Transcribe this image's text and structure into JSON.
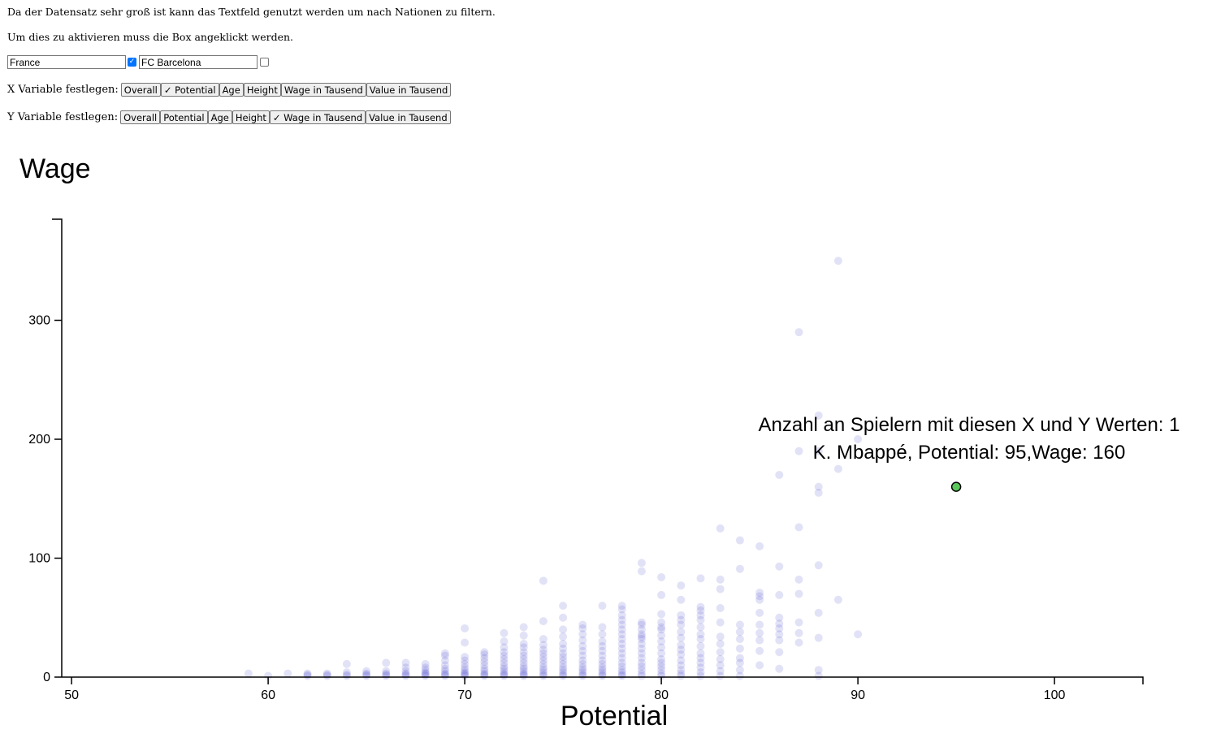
{
  "intro": {
    "line1": "Da der Datensatz sehr groß ist kann das Textfeld genutzt werden um nach Nationen zu filtern.",
    "line2": "Um dies zu aktivieren muss die Box angeklickt werden."
  },
  "filters": {
    "nation_value": "France",
    "nation_checked": true,
    "club_value": "FC Barcelona",
    "club_checked": false
  },
  "x_selector": {
    "label": "X Variable festlegen:",
    "options": [
      "Overall",
      "✓ Potential",
      "Age",
      "Height",
      "Wage in Tausend",
      "Value in Tausend"
    ]
  },
  "y_selector": {
    "label": "Y Variable festlegen:",
    "options": [
      "Overall",
      "Potential",
      "Age",
      "Height",
      "✓ Wage in Tausend",
      "Value in Tausend"
    ]
  },
  "colors": {
    "points": "#3a3acc",
    "highlight_fill": "#5ac85a",
    "axis": "#000000"
  },
  "chart_data": {
    "type": "scatter",
    "title": "Wage",
    "xlabel": "Potential",
    "ylabel": "Wage",
    "xlim": [
      49.5,
      104.5
    ],
    "ylim": [
      0,
      385
    ],
    "xticks": [
      50,
      60,
      70,
      80,
      90,
      100
    ],
    "yticks": [
      0,
      100,
      200,
      300
    ],
    "grid": false,
    "tooltip": {
      "line1": "Anzahl an Spielern mit diesen X und Y Werten: 1",
      "line2": "K. Mbappé, Potential: 95,Wage: 160"
    },
    "highlight": {
      "x": 95,
      "y": 160
    },
    "points": [
      [
        59,
        3
      ],
      [
        60,
        1
      ],
      [
        61,
        3
      ],
      [
        62,
        1
      ],
      [
        62,
        2
      ],
      [
        62,
        3
      ],
      [
        63,
        1
      ],
      [
        63,
        2
      ],
      [
        63,
        3
      ],
      [
        64,
        1
      ],
      [
        64,
        2
      ],
      [
        64,
        4
      ],
      [
        64,
        11
      ],
      [
        65,
        1
      ],
      [
        65,
        2
      ],
      [
        65,
        3
      ],
      [
        65,
        5
      ],
      [
        66,
        1
      ],
      [
        66,
        2
      ],
      [
        66,
        3
      ],
      [
        66,
        5
      ],
      [
        66,
        12
      ],
      [
        67,
        1
      ],
      [
        67,
        2
      ],
      [
        67,
        3
      ],
      [
        67,
        5
      ],
      [
        67,
        8
      ],
      [
        67,
        12
      ],
      [
        68,
        1
      ],
      [
        68,
        2
      ],
      [
        68,
        3
      ],
      [
        68,
        4
      ],
      [
        68,
        6
      ],
      [
        68,
        8
      ],
      [
        68,
        11
      ],
      [
        69,
        1
      ],
      [
        69,
        2
      ],
      [
        69,
        3
      ],
      [
        69,
        5
      ],
      [
        69,
        7
      ],
      [
        69,
        10
      ],
      [
        69,
        14
      ],
      [
        69,
        18
      ],
      [
        69,
        20
      ],
      [
        70,
        1
      ],
      [
        70,
        2
      ],
      [
        70,
        3
      ],
      [
        70,
        4
      ],
      [
        70,
        6
      ],
      [
        70,
        8
      ],
      [
        70,
        11
      ],
      [
        70,
        14
      ],
      [
        70,
        17
      ],
      [
        70,
        29
      ],
      [
        70,
        41
      ],
      [
        71,
        1
      ],
      [
        71,
        2
      ],
      [
        71,
        3
      ],
      [
        71,
        5
      ],
      [
        71,
        7
      ],
      [
        71,
        10
      ],
      [
        71,
        13
      ],
      [
        71,
        16
      ],
      [
        71,
        19
      ],
      [
        71,
        21
      ],
      [
        72,
        1
      ],
      [
        72,
        2
      ],
      [
        72,
        3
      ],
      [
        72,
        5
      ],
      [
        72,
        7
      ],
      [
        72,
        9
      ],
      [
        72,
        12
      ],
      [
        72,
        15
      ],
      [
        72,
        18
      ],
      [
        72,
        21
      ],
      [
        72,
        25
      ],
      [
        72,
        30
      ],
      [
        72,
        37
      ],
      [
        73,
        1
      ],
      [
        73,
        2
      ],
      [
        73,
        3
      ],
      [
        73,
        5
      ],
      [
        73,
        7
      ],
      [
        73,
        9
      ],
      [
        73,
        12
      ],
      [
        73,
        15
      ],
      [
        73,
        18
      ],
      [
        73,
        21
      ],
      [
        73,
        25
      ],
      [
        73,
        28
      ],
      [
        73,
        35
      ],
      [
        73,
        42
      ],
      [
        74,
        1
      ],
      [
        74,
        2
      ],
      [
        74,
        4
      ],
      [
        74,
        6
      ],
      [
        74,
        8
      ],
      [
        74,
        11
      ],
      [
        74,
        14
      ],
      [
        74,
        17
      ],
      [
        74,
        20
      ],
      [
        74,
        23
      ],
      [
        74,
        27
      ],
      [
        74,
        32
      ],
      [
        74,
        47
      ],
      [
        74,
        81
      ],
      [
        75,
        1
      ],
      [
        75,
        2
      ],
      [
        75,
        4
      ],
      [
        75,
        6
      ],
      [
        75,
        8
      ],
      [
        75,
        11
      ],
      [
        75,
        14
      ],
      [
        75,
        17
      ],
      [
        75,
        20
      ],
      [
        75,
        24
      ],
      [
        75,
        28
      ],
      [
        75,
        34
      ],
      [
        75,
        40
      ],
      [
        75,
        50
      ],
      [
        75,
        60
      ],
      [
        76,
        1
      ],
      [
        76,
        2
      ],
      [
        76,
        4
      ],
      [
        76,
        6
      ],
      [
        76,
        8
      ],
      [
        76,
        11
      ],
      [
        76,
        14
      ],
      [
        76,
        18
      ],
      [
        76,
        22
      ],
      [
        76,
        26
      ],
      [
        76,
        31
      ],
      [
        76,
        36
      ],
      [
        76,
        41
      ],
      [
        76,
        44
      ],
      [
        77,
        1
      ],
      [
        77,
        2
      ],
      [
        77,
        4
      ],
      [
        77,
        6
      ],
      [
        77,
        8
      ],
      [
        77,
        11
      ],
      [
        77,
        14
      ],
      [
        77,
        18
      ],
      [
        77,
        22
      ],
      [
        77,
        26
      ],
      [
        77,
        30
      ],
      [
        77,
        36
      ],
      [
        77,
        42
      ],
      [
        77,
        60
      ],
      [
        78,
        1
      ],
      [
        78,
        2
      ],
      [
        78,
        4
      ],
      [
        78,
        6
      ],
      [
        78,
        9
      ],
      [
        78,
        12
      ],
      [
        78,
        16
      ],
      [
        78,
        20
      ],
      [
        78,
        24
      ],
      [
        78,
        28
      ],
      [
        78,
        32
      ],
      [
        78,
        36
      ],
      [
        78,
        40
      ],
      [
        78,
        44
      ],
      [
        78,
        48
      ],
      [
        78,
        52
      ],
      [
        78,
        57
      ],
      [
        78,
        60
      ],
      [
        79,
        1
      ],
      [
        79,
        3
      ],
      [
        79,
        6
      ],
      [
        79,
        9
      ],
      [
        79,
        12
      ],
      [
        79,
        16
      ],
      [
        79,
        20
      ],
      [
        79,
        24
      ],
      [
        79,
        28
      ],
      [
        79,
        32
      ],
      [
        79,
        34
      ],
      [
        79,
        36
      ],
      [
        79,
        40
      ],
      [
        79,
        44
      ],
      [
        79,
        46
      ],
      [
        79,
        89
      ],
      [
        79,
        96
      ],
      [
        80,
        1
      ],
      [
        80,
        3
      ],
      [
        80,
        6
      ],
      [
        80,
        9
      ],
      [
        80,
        12
      ],
      [
        80,
        15
      ],
      [
        80,
        20
      ],
      [
        80,
        25
      ],
      [
        80,
        30
      ],
      [
        80,
        35
      ],
      [
        80,
        40
      ],
      [
        80,
        42
      ],
      [
        80,
        46
      ],
      [
        80,
        53
      ],
      [
        80,
        69
      ],
      [
        80,
        84
      ],
      [
        81,
        1
      ],
      [
        81,
        3
      ],
      [
        81,
        6
      ],
      [
        81,
        10
      ],
      [
        81,
        14
      ],
      [
        81,
        19
      ],
      [
        81,
        23
      ],
      [
        81,
        27
      ],
      [
        81,
        33
      ],
      [
        81,
        38
      ],
      [
        81,
        44
      ],
      [
        81,
        48
      ],
      [
        81,
        52
      ],
      [
        81,
        65
      ],
      [
        81,
        77
      ],
      [
        82,
        1
      ],
      [
        82,
        4
      ],
      [
        82,
        8
      ],
      [
        82,
        12
      ],
      [
        82,
        16
      ],
      [
        82,
        20
      ],
      [
        82,
        26
      ],
      [
        82,
        32
      ],
      [
        82,
        36
      ],
      [
        82,
        42
      ],
      [
        82,
        48
      ],
      [
        82,
        52
      ],
      [
        82,
        56
      ],
      [
        82,
        59
      ],
      [
        82,
        83
      ],
      [
        83,
        1
      ],
      [
        83,
        5
      ],
      [
        83,
        10
      ],
      [
        83,
        15
      ],
      [
        83,
        21
      ],
      [
        83,
        28
      ],
      [
        83,
        34
      ],
      [
        83,
        46
      ],
      [
        83,
        58
      ],
      [
        83,
        74
      ],
      [
        83,
        82
      ],
      [
        83,
        125
      ],
      [
        84,
        1
      ],
      [
        84,
        6
      ],
      [
        84,
        12
      ],
      [
        84,
        16
      ],
      [
        84,
        24
      ],
      [
        84,
        32
      ],
      [
        84,
        38
      ],
      [
        84,
        44
      ],
      [
        84,
        91
      ],
      [
        84,
        115
      ],
      [
        85,
        10
      ],
      [
        85,
        22
      ],
      [
        85,
        31
      ],
      [
        85,
        37
      ],
      [
        85,
        44
      ],
      [
        85,
        54
      ],
      [
        85,
        65
      ],
      [
        85,
        68
      ],
      [
        85,
        71
      ],
      [
        85,
        110
      ],
      [
        86,
        7
      ],
      [
        86,
        21
      ],
      [
        86,
        31
      ],
      [
        86,
        36
      ],
      [
        86,
        41
      ],
      [
        86,
        45
      ],
      [
        86,
        50
      ],
      [
        86,
        69
      ],
      [
        86,
        93
      ],
      [
        86,
        170
      ],
      [
        87,
        29
      ],
      [
        87,
        37
      ],
      [
        87,
        46
      ],
      [
        87,
        70
      ],
      [
        87,
        82
      ],
      [
        87,
        126
      ],
      [
        87,
        190
      ],
      [
        87,
        290
      ],
      [
        88,
        1
      ],
      [
        88,
        6
      ],
      [
        88,
        33
      ],
      [
        88,
        54
      ],
      [
        88,
        94
      ],
      [
        88,
        155
      ],
      [
        88,
        160
      ],
      [
        88,
        190
      ],
      [
        88,
        220
      ],
      [
        89,
        65
      ],
      [
        89,
        175
      ],
      [
        89,
        350
      ],
      [
        90,
        36
      ],
      [
        90,
        200
      ]
    ]
  }
}
